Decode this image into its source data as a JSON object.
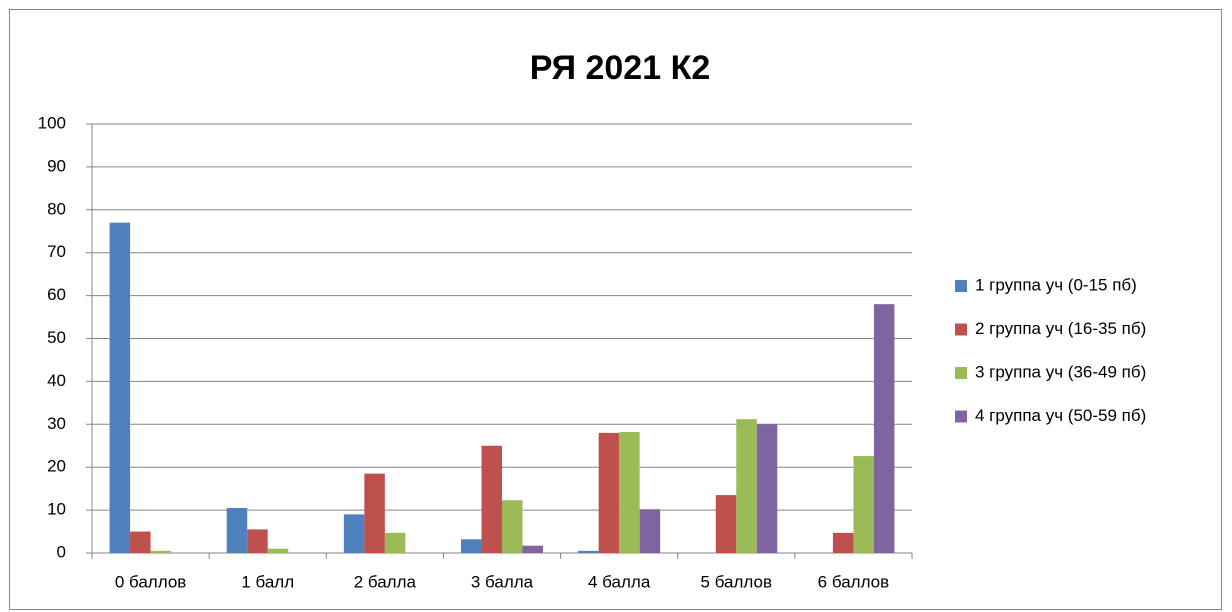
{
  "chart_data": {
    "type": "bar",
    "title": "РЯ 2021 К2",
    "categories": [
      "0 баллов",
      "1 балл",
      "2 балла",
      "3 балла",
      "4 балла",
      "5 баллов",
      "6 баллов"
    ],
    "series": [
      {
        "name": "1 группа уч (0-15 пб)",
        "color": "#4f81bd",
        "values": [
          77,
          10.5,
          9,
          3.2,
          0.5,
          0,
          0
        ]
      },
      {
        "name": "2 группа уч (16-35 пб)",
        "color": "#c0504d",
        "values": [
          5,
          5.5,
          18.5,
          25,
          28,
          13.5,
          4.7
        ]
      },
      {
        "name": "3 группа уч (36-49 пб)",
        "color": "#9bbb59",
        "values": [
          0.5,
          1,
          4.7,
          12.3,
          28.2,
          31.2,
          22.6
        ]
      },
      {
        "name": "4 группа уч (50-59 пб)",
        "color": "#8064a2",
        "values": [
          0,
          0,
          0,
          1.7,
          10.2,
          30,
          58
        ]
      }
    ],
    "ylim": [
      0,
      100
    ],
    "yticks": [
      0,
      10,
      20,
      30,
      40,
      50,
      60,
      70,
      80,
      90,
      100
    ],
    "grid": true,
    "legend": "right"
  }
}
